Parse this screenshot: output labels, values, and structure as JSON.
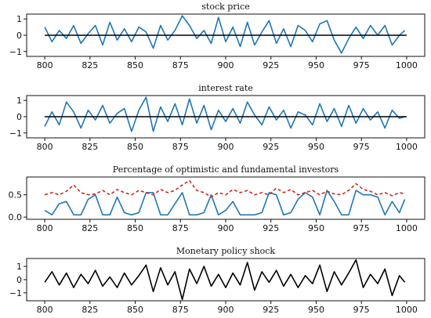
{
  "chart_data": [
    {
      "type": "line",
      "title": "stock price",
      "xlabel": "",
      "ylabel": "",
      "xlim": [
        790,
        1010
      ],
      "ylim": [
        -1.3,
        1.3
      ],
      "xticks": [
        800,
        825,
        850,
        875,
        900,
        925,
        950,
        975,
        1000
      ],
      "yticks": [
        -1,
        0,
        1
      ],
      "xtick_labels": [
        "800",
        "825",
        "850",
        "875",
        "900",
        "925",
        "950",
        "975",
        "1000"
      ],
      "ytick_labels": [
        "−1",
        "0",
        "1"
      ],
      "grid": false,
      "series": [
        {
          "color": "#1f77b4",
          "style": "solid",
          "x": [
            800,
            804,
            808,
            812,
            816,
            820,
            824,
            828,
            832,
            836,
            840,
            844,
            848,
            852,
            856,
            860,
            864,
            868,
            872,
            876,
            880,
            884,
            888,
            892,
            896,
            900,
            904,
            908,
            912,
            916,
            920,
            924,
            928,
            932,
            936,
            940,
            944,
            948,
            952,
            956,
            960,
            964,
            968,
            972,
            976,
            980,
            984,
            988,
            992,
            996,
            999
          ],
          "values": [
            0.5,
            -0.4,
            0.3,
            -0.2,
            0.6,
            -0.5,
            0.1,
            0.6,
            -0.6,
            0.8,
            -0.3,
            0.4,
            -0.4,
            0.5,
            0.2,
            -0.8,
            0.6,
            -0.3,
            0.3,
            1.2,
            0.6,
            -0.2,
            0.3,
            -0.5,
            1.1,
            -0.4,
            0.5,
            -0.7,
            0.8,
            -0.6,
            0.2,
            0.9,
            -0.5,
            0.4,
            -0.7,
            0.6,
            0.3,
            -0.4,
            0.7,
            0.9,
            -0.3,
            -1.1,
            -0.2,
            0.5,
            -0.2,
            0.6,
            0.0,
            0.6,
            -0.6,
            0.0,
            0.3
          ]
        },
        {
          "color": "#000000",
          "style": "solid",
          "x": [
            800,
            1000
          ],
          "values": [
            0,
            0
          ]
        }
      ]
    },
    {
      "type": "line",
      "title": "interest rate",
      "xlabel": "",
      "ylabel": "",
      "xlim": [
        790,
        1010
      ],
      "ylim": [
        -1.3,
        1.3
      ],
      "xticks": [
        800,
        825,
        850,
        875,
        900,
        925,
        950,
        975,
        1000
      ],
      "yticks": [
        -1,
        0,
        1
      ],
      "xtick_labels": [
        "800",
        "825",
        "850",
        "875",
        "900",
        "925",
        "950",
        "975",
        "1000"
      ],
      "ytick_labels": [
        "−1",
        "0",
        "1"
      ],
      "grid": false,
      "series": [
        {
          "color": "#1f77b4",
          "style": "solid",
          "x": [
            800,
            804,
            808,
            812,
            816,
            820,
            824,
            828,
            832,
            836,
            840,
            844,
            848,
            852,
            856,
            860,
            864,
            868,
            872,
            876,
            880,
            884,
            888,
            892,
            896,
            900,
            904,
            908,
            912,
            916,
            920,
            924,
            928,
            932,
            936,
            940,
            944,
            948,
            952,
            956,
            960,
            964,
            968,
            972,
            976,
            980,
            984,
            988,
            992,
            996,
            999
          ],
          "values": [
            -0.6,
            0.3,
            -0.5,
            0.9,
            0.3,
            -0.7,
            0.4,
            -0.2,
            0.7,
            -0.4,
            0.2,
            0.5,
            -0.9,
            0.4,
            1.2,
            -0.9,
            0.6,
            -0.3,
            0.8,
            -0.5,
            1.1,
            -0.4,
            0.7,
            -0.8,
            0.4,
            -0.3,
            0.5,
            -0.4,
            0.9,
            0.1,
            -0.5,
            0.6,
            -0.2,
            0.4,
            -0.7,
            0.3,
            0.1,
            -0.5,
            0.8,
            -0.3,
            0.5,
            -0.6,
            0.7,
            -0.4,
            0.5,
            -0.2,
            0.3,
            -0.7,
            0.4,
            -0.1,
            0.0
          ]
        },
        {
          "color": "#000000",
          "style": "solid",
          "x": [
            800,
            1000
          ],
          "values": [
            0,
            0
          ]
        }
      ]
    },
    {
      "type": "line",
      "title": "Percentage of optimistic and fundamental investors",
      "xlabel": "",
      "ylabel": "",
      "xlim": [
        790,
        1010
      ],
      "ylim": [
        -0.05,
        0.9
      ],
      "xticks": [
        800,
        825,
        850,
        875,
        900,
        925,
        950,
        975,
        1000
      ],
      "yticks": [
        0.0,
        0.5
      ],
      "xtick_labels": [
        "800",
        "825",
        "850",
        "875",
        "900",
        "925",
        "950",
        "975",
        "1000"
      ],
      "ytick_labels": [
        "0.0",
        "0.5"
      ],
      "grid": false,
      "series": [
        {
          "color": "#1f77b4",
          "style": "solid",
          "x": [
            800,
            804,
            808,
            812,
            816,
            820,
            824,
            828,
            832,
            836,
            840,
            844,
            848,
            852,
            856,
            860,
            864,
            868,
            872,
            876,
            880,
            884,
            888,
            892,
            896,
            900,
            904,
            908,
            912,
            916,
            920,
            924,
            928,
            932,
            936,
            940,
            944,
            948,
            952,
            956,
            960,
            964,
            968,
            972,
            976,
            980,
            984,
            988,
            992,
            996,
            999
          ],
          "values": [
            0.15,
            0.05,
            0.3,
            0.35,
            0.05,
            0.05,
            0.4,
            0.5,
            0.05,
            0.05,
            0.45,
            0.1,
            0.05,
            0.1,
            0.55,
            0.55,
            0.05,
            0.05,
            0.3,
            0.55,
            0.05,
            0.05,
            0.1,
            0.5,
            0.05,
            0.15,
            0.35,
            0.05,
            0.05,
            0.05,
            0.1,
            0.55,
            0.5,
            0.05,
            0.1,
            0.4,
            0.55,
            0.45,
            0.05,
            0.6,
            0.35,
            0.05,
            0.05,
            0.6,
            0.5,
            0.5,
            0.45,
            0.05,
            0.35,
            0.1,
            0.4
          ]
        },
        {
          "color": "#cc2a1f",
          "style": "dashed",
          "x": [
            800,
            804,
            808,
            812,
            816,
            820,
            824,
            828,
            832,
            836,
            840,
            844,
            848,
            852,
            856,
            860,
            864,
            868,
            872,
            876,
            880,
            884,
            888,
            892,
            896,
            900,
            904,
            908,
            912,
            916,
            920,
            924,
            928,
            932,
            936,
            940,
            944,
            948,
            952,
            956,
            960,
            964,
            968,
            972,
            976,
            980,
            984,
            988,
            992,
            996,
            999
          ],
          "values": [
            0.5,
            0.55,
            0.5,
            0.58,
            0.72,
            0.55,
            0.5,
            0.52,
            0.6,
            0.5,
            0.62,
            0.55,
            0.5,
            0.6,
            0.55,
            0.5,
            0.62,
            0.55,
            0.6,
            0.72,
            0.82,
            0.6,
            0.55,
            0.45,
            0.55,
            0.5,
            0.62,
            0.55,
            0.6,
            0.5,
            0.55,
            0.5,
            0.65,
            0.55,
            0.62,
            0.5,
            0.55,
            0.6,
            0.5,
            0.58,
            0.52,
            0.5,
            0.6,
            0.75,
            0.62,
            0.58,
            0.5,
            0.55,
            0.48,
            0.55,
            0.52
          ]
        }
      ]
    },
    {
      "type": "line",
      "title": "Monetary policy shock",
      "xlabel": "",
      "ylabel": "",
      "xlim": [
        790,
        1010
      ],
      "ylim": [
        -1.6,
        1.6
      ],
      "xticks": [
        800,
        825,
        850,
        875,
        900,
        925,
        950,
        975,
        1000
      ],
      "yticks": [
        -1,
        0,
        1
      ],
      "xtick_labels": [
        "800",
        "825",
        "850",
        "875",
        "900",
        "925",
        "950",
        "975",
        "1000"
      ],
      "ytick_labels": [
        "−1",
        "0",
        "1"
      ],
      "grid": false,
      "series": [
        {
          "color": "#000000",
          "style": "solid",
          "x": [
            800,
            804,
            808,
            812,
            816,
            820,
            824,
            828,
            832,
            836,
            840,
            844,
            848,
            852,
            856,
            860,
            864,
            868,
            872,
            876,
            880,
            884,
            888,
            892,
            896,
            900,
            904,
            908,
            912,
            916,
            920,
            924,
            928,
            932,
            936,
            940,
            944,
            948,
            952,
            956,
            960,
            964,
            968,
            972,
            976,
            980,
            984,
            988,
            992,
            996,
            999
          ],
          "values": [
            -0.2,
            0.6,
            -0.4,
            0.5,
            -0.6,
            0.4,
            -0.3,
            0.7,
            -0.5,
            0.2,
            -0.6,
            0.5,
            -0.4,
            0.3,
            1.1,
            -0.9,
            0.9,
            -0.4,
            0.6,
            -1.5,
            0.8,
            -0.3,
            1.0,
            -0.5,
            0.4,
            -0.6,
            0.5,
            -0.4,
            1.3,
            -0.8,
            0.6,
            -0.2,
            0.7,
            -0.5,
            0.4,
            -0.6,
            0.3,
            -0.3,
            1.1,
            -0.9,
            0.6,
            -0.4,
            0.5,
            1.5,
            -0.6,
            0.4,
            -0.3,
            0.8,
            -1.2,
            0.3,
            -0.2
          ]
        }
      ]
    }
  ]
}
